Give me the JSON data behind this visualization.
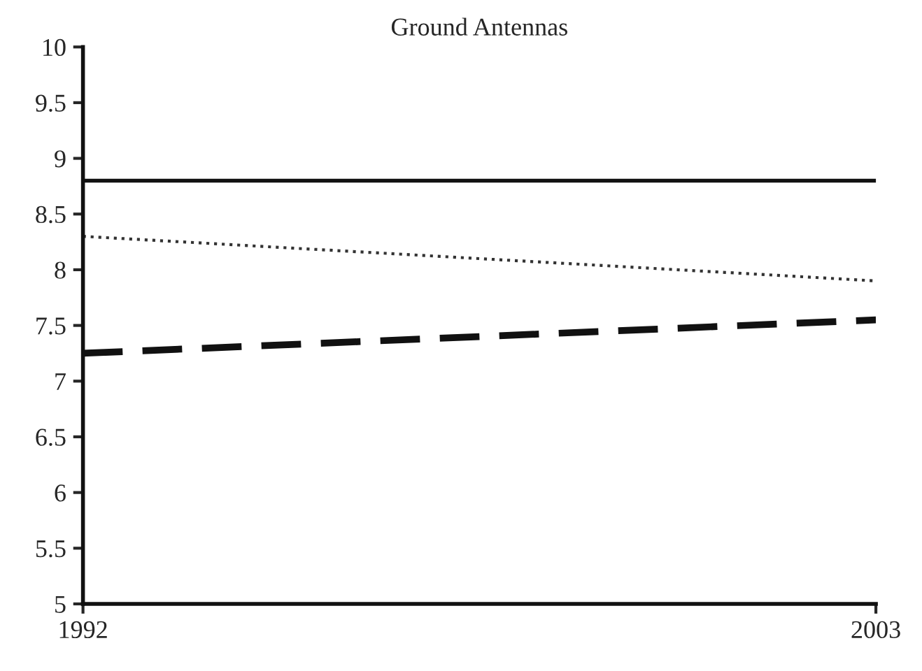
{
  "chart_data": {
    "type": "line",
    "title": "Ground Antennas",
    "x": [
      1992,
      2003
    ],
    "series": [
      {
        "color": "#111111",
        "values": [
          8.8,
          8.8
        ],
        "line_style": "solid"
      },
      {
        "color": "#333333",
        "values": [
          8.3,
          7.9
        ],
        "line_style": "dotted"
      },
      {
        "color": "#111111",
        "values": [
          7.25,
          7.55
        ],
        "line_style": "dashed"
      }
    ],
    "xlim": [
      1992,
      2003
    ],
    "xticks": [
      1992,
      2003
    ],
    "ylim": [
      5,
      10
    ],
    "yticks": [
      5,
      5.5,
      6,
      6.5,
      7,
      7.5,
      8,
      8.5,
      9,
      9.5,
      10
    ],
    "grid": false,
    "legend": false
  }
}
